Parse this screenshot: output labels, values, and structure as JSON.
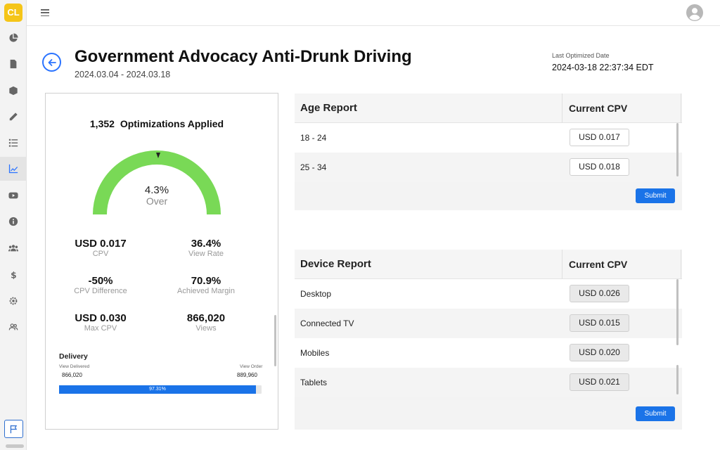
{
  "app": {
    "logo": "CL",
    "sidebar_icons": [
      "pie-chart-icon",
      "document-icon",
      "box-icon",
      "pencil-icon",
      "list-icon",
      "line-chart-icon",
      "youtube-icon",
      "info-icon",
      "users-icon",
      "dollar-icon",
      "settings-icon",
      "user-group-icon",
      "flag-icon"
    ],
    "active_sidebar_item": "line-chart-icon"
  },
  "header": {
    "title": "Government Advocacy Anti-Drunk Driving",
    "date_range": "2024.03.04 - 2024.03.18",
    "last_optimized_label": "Last Optimized Date",
    "last_optimized_value": "2024-03-18 22:37:34 EDT"
  },
  "summary": {
    "optimizations_count": "1,352",
    "optimizations_label": "Optimizations Applied",
    "gauge_value": "4.3%",
    "gauge_status": "Over",
    "gauge_color": "#79d956",
    "stats": [
      {
        "value": "USD 0.017",
        "label": "CPV"
      },
      {
        "value": "36.4%",
        "label": "View Rate"
      },
      {
        "value": "-50%",
        "label": "CPV Difference"
      },
      {
        "value": "70.9%",
        "label": "Achieved Margin"
      },
      {
        "value": "USD 0.030",
        "label": "Max CPV"
      },
      {
        "value": "866,020",
        "label": "Views"
      }
    ],
    "delivery": {
      "title": "Delivery",
      "delivered_label": "View Delivered",
      "delivered_value": "866,020",
      "order_label": "View Order",
      "order_value": "889,960",
      "progress_percent": 97.31,
      "progress_text": "97.31%"
    }
  },
  "age_report": {
    "title": "Age Report",
    "column": "Current CPV",
    "rows": [
      {
        "name": "18 - 24",
        "cpv": "USD  0.017"
      },
      {
        "name": "25 - 34",
        "cpv": "USD  0.018"
      }
    ],
    "submit_label": "Submit"
  },
  "device_report": {
    "title": "Device Report",
    "column": "Current CPV",
    "rows": [
      {
        "name": "Desktop",
        "cpv": "USD 0.026"
      },
      {
        "name": "Connected TV",
        "cpv": "USD 0.015"
      },
      {
        "name": "Mobiles",
        "cpv": "USD 0.020"
      },
      {
        "name": "Tablets",
        "cpv": "USD 0.021"
      }
    ],
    "submit_label": "Submit"
  },
  "colors": {
    "accent": "#1a73e8",
    "logo": "#f5c518"
  }
}
